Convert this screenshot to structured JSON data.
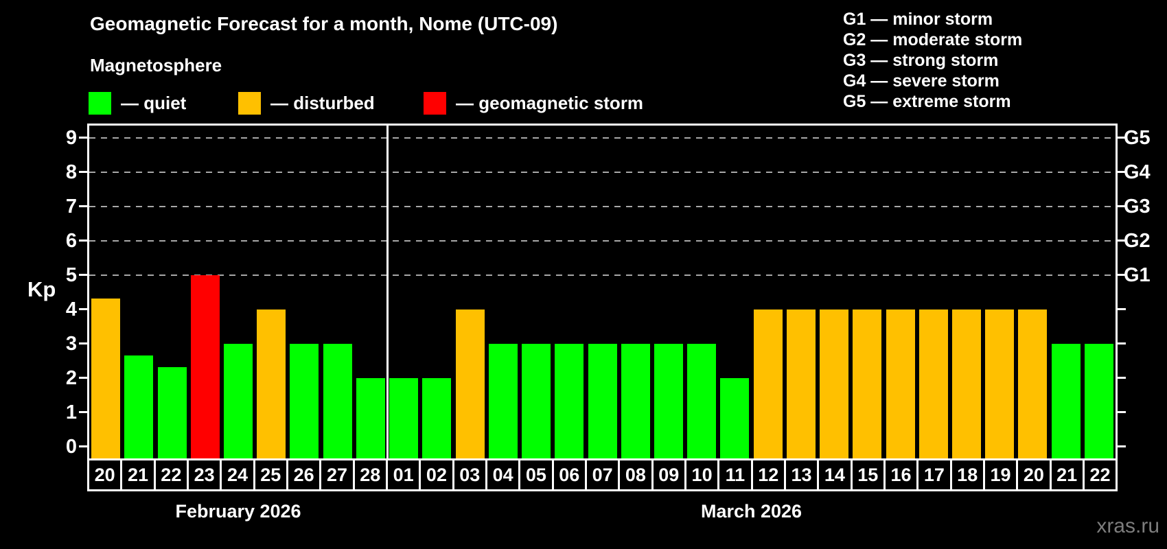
{
  "title": "Geomagnetic Forecast for a month, Nome (UTC-09)",
  "subtitle": "Magnetosphere",
  "watermark": "xras.ru",
  "legend": {
    "items": [
      {
        "key": "quiet",
        "label": "— quiet",
        "color": "#00ff00"
      },
      {
        "key": "disturbed",
        "label": "— disturbed",
        "color": "#ffc000"
      },
      {
        "key": "storm",
        "label": "— geomagnetic storm",
        "color": "#ff0000"
      }
    ]
  },
  "storm_scale": [
    "G1 — minor storm",
    "G2 — moderate storm",
    "G3 — strong storm",
    "G4 — severe storm",
    "G5 — extreme storm"
  ],
  "chart_data": {
    "type": "bar",
    "title": "Geomagnetic Forecast for a month, Nome (UTC-09)",
    "ylabel": "Kp",
    "ylim": [
      0,
      9
    ],
    "y_ticks": [
      0,
      1,
      2,
      3,
      4,
      5,
      6,
      7,
      8,
      9
    ],
    "grid": "dashed horizontal lines at Kp 5-9 only",
    "legend_position": "top-left",
    "g_levels": [
      {
        "kp": 5,
        "label": "G1"
      },
      {
        "kp": 6,
        "label": "G2"
      },
      {
        "kp": 7,
        "label": "G3"
      },
      {
        "kp": 8,
        "label": "G4"
      },
      {
        "kp": 9,
        "label": "G5"
      }
    ],
    "months": [
      {
        "label": "February 2026"
      },
      {
        "label": "March 2026"
      }
    ],
    "points": [
      {
        "month_index": 0,
        "day": "20",
        "kp": 4.33,
        "status": "disturbed"
      },
      {
        "month_index": 0,
        "day": "21",
        "kp": 2.67,
        "status": "quiet"
      },
      {
        "month_index": 0,
        "day": "22",
        "kp": 2.33,
        "status": "quiet"
      },
      {
        "month_index": 0,
        "day": "23",
        "kp": 5,
        "status": "storm"
      },
      {
        "month_index": 0,
        "day": "24",
        "kp": 3,
        "status": "quiet"
      },
      {
        "month_index": 0,
        "day": "25",
        "kp": 4,
        "status": "disturbed"
      },
      {
        "month_index": 0,
        "day": "26",
        "kp": 3,
        "status": "quiet"
      },
      {
        "month_index": 0,
        "day": "27",
        "kp": 3,
        "status": "quiet"
      },
      {
        "month_index": 0,
        "day": "28",
        "kp": 2,
        "status": "quiet"
      },
      {
        "month_index": 1,
        "day": "01",
        "kp": 2,
        "status": "quiet"
      },
      {
        "month_index": 1,
        "day": "02",
        "kp": 2,
        "status": "quiet"
      },
      {
        "month_index": 1,
        "day": "03",
        "kp": 4,
        "status": "disturbed"
      },
      {
        "month_index": 1,
        "day": "04",
        "kp": 3,
        "status": "quiet"
      },
      {
        "month_index": 1,
        "day": "05",
        "kp": 3,
        "status": "quiet"
      },
      {
        "month_index": 1,
        "day": "06",
        "kp": 3,
        "status": "quiet"
      },
      {
        "month_index": 1,
        "day": "07",
        "kp": 3,
        "status": "quiet"
      },
      {
        "month_index": 1,
        "day": "08",
        "kp": 3,
        "status": "quiet"
      },
      {
        "month_index": 1,
        "day": "09",
        "kp": 3,
        "status": "quiet"
      },
      {
        "month_index": 1,
        "day": "10",
        "kp": 3,
        "status": "quiet"
      },
      {
        "month_index": 1,
        "day": "11",
        "kp": 2,
        "status": "quiet"
      },
      {
        "month_index": 1,
        "day": "12",
        "kp": 4,
        "status": "disturbed"
      },
      {
        "month_index": 1,
        "day": "13",
        "kp": 4,
        "status": "disturbed"
      },
      {
        "month_index": 1,
        "day": "14",
        "kp": 4,
        "status": "disturbed"
      },
      {
        "month_index": 1,
        "day": "15",
        "kp": 4,
        "status": "disturbed"
      },
      {
        "month_index": 1,
        "day": "16",
        "kp": 4,
        "status": "disturbed"
      },
      {
        "month_index": 1,
        "day": "17",
        "kp": 4,
        "status": "disturbed"
      },
      {
        "month_index": 1,
        "day": "18",
        "kp": 4,
        "status": "disturbed"
      },
      {
        "month_index": 1,
        "day": "19",
        "kp": 4,
        "status": "disturbed"
      },
      {
        "month_index": 1,
        "day": "20",
        "kp": 4,
        "status": "disturbed"
      },
      {
        "month_index": 1,
        "day": "21",
        "kp": 3,
        "status": "quiet"
      },
      {
        "month_index": 1,
        "day": "22",
        "kp": 3,
        "status": "quiet"
      }
    ]
  }
}
